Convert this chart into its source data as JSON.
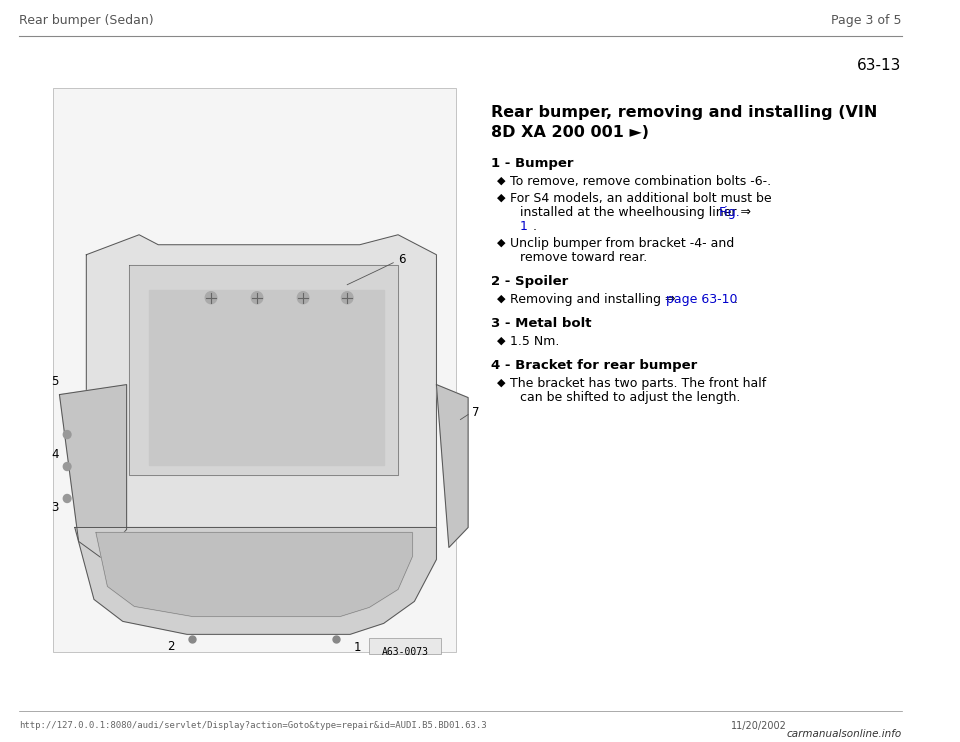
{
  "header_left": "Rear bumper (Sedan)",
  "header_right": "Page 3 of 5",
  "page_number": "63-13",
  "section_title_line1": "Rear bumper, removing and installing (VIN",
  "section_title_line2": "8D XA 200 001 ►)",
  "items": [
    {
      "number": "1",
      "label": "Bumper",
      "bullets": [
        {
          "text": "To remove, remove combination bolts -6-.",
          "type": "plain"
        },
        {
          "text": "For S4 models, an additional bolt must be installed at the wheelhousing liner ⇒ |Fig.\n1| .",
          "type": "link_inline",
          "link_word": "Fig.\n1"
        },
        {
          "text": "Unclip bumper from bracket -4- and remove toward rear.",
          "type": "plain_wrap",
          "line2": "remove toward rear."
        }
      ]
    },
    {
      "number": "2",
      "label": "Spoiler",
      "bullets": [
        {
          "text": "Removing and installing ⇒ |page 63-10| .",
          "type": "link_inline",
          "link_word": "page 63-10"
        }
      ]
    },
    {
      "number": "3",
      "label": "Metal bolt",
      "bullets": [
        {
          "text": "1.5 Nm.",
          "type": "plain"
        }
      ]
    },
    {
      "number": "4",
      "label": "Bracket for rear bumper",
      "bullets": [
        {
          "text": "The bracket has two parts. The front half can be shifted to adjust the length.",
          "type": "plain_wrap2",
          "line2": "can be shifted to adjust the length."
        }
      ]
    }
  ],
  "footer_url": "http://127.0.0.1:8080/audi/servlet/Display?action=Goto&type=repair&id=AUDI.B5.BD01.63.3",
  "footer_date": "11/20/2002",
  "footer_logo": "carmanualsonline.info",
  "image_label": "A63-0073",
  "bg_color": "#ffffff",
  "header_line_color": "#888888",
  "text_color": "#000000",
  "link_color": "#0000cc",
  "bullet_char": "◆"
}
